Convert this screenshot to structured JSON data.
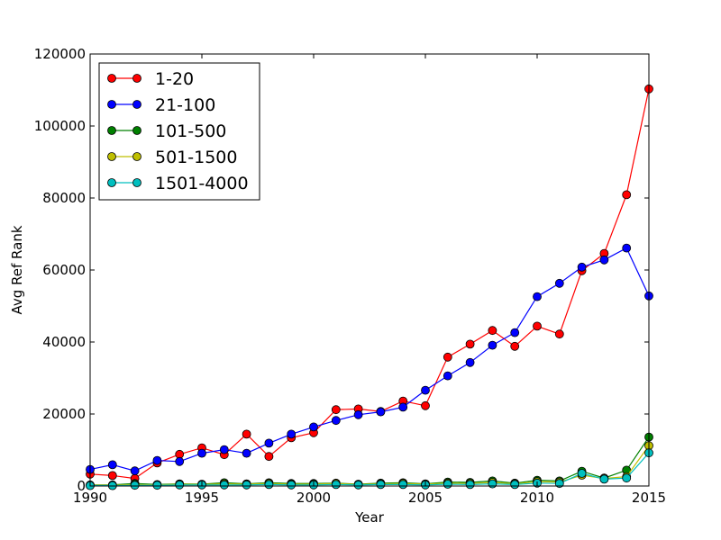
{
  "chart_data": {
    "type": "line",
    "xlabel": "Year",
    "ylabel": "Avg Ref Rank",
    "xlim": [
      1990,
      2015
    ],
    "ylim": [
      0,
      120000
    ],
    "xticks": [
      "1990",
      "1995",
      "2000",
      "2005",
      "2010",
      "2015"
    ],
    "yticks": [
      "0",
      "20000",
      "40000",
      "60000",
      "80000",
      "100000",
      "120000"
    ],
    "grid": false,
    "legend_position": "top-left",
    "x": [
      1990,
      1991,
      1992,
      1993,
      1994,
      1995,
      1996,
      1997,
      1998,
      1999,
      2000,
      2001,
      2002,
      2003,
      2004,
      2005,
      2006,
      2007,
      2008,
      2009,
      2010,
      2011,
      2012,
      2013,
      2014,
      2015
    ],
    "series": [
      {
        "name": "1-20",
        "color": "#ff0000",
        "values": [
          3300,
          2900,
          2100,
          6400,
          8800,
          10600,
          8700,
          14400,
          8200,
          13400,
          14800,
          21200,
          21400,
          20700,
          23600,
          22300,
          35800,
          39400,
          43200,
          38800,
          44400,
          42200,
          59800,
          64600,
          80900,
          110300
        ]
      },
      {
        "name": "21-100",
        "color": "#0000ff",
        "values": [
          4600,
          5900,
          4200,
          7100,
          6800,
          9100,
          10100,
          9100,
          11900,
          14400,
          16400,
          18200,
          19800,
          20600,
          21900,
          26600,
          30600,
          34300,
          39100,
          42600,
          52600,
          56300,
          60800,
          62800,
          66100,
          52800
        ]
      },
      {
        "name": "101-500",
        "color": "#008000",
        "values": [
          300,
          300,
          700,
          400,
          600,
          500,
          900,
          600,
          900,
          700,
          700,
          800,
          500,
          800,
          900,
          600,
          1100,
          1000,
          1400,
          800,
          1600,
          1400,
          4100,
          2200,
          4400,
          13600
        ]
      },
      {
        "name": "501-1500",
        "color": "#bfbf00",
        "values": [
          200,
          200,
          400,
          300,
          500,
          400,
          600,
          500,
          700,
          500,
          500,
          700,
          400,
          600,
          700,
          500,
          800,
          700,
          1000,
          600,
          1200,
          1100,
          3000,
          2100,
          2600,
          11200
        ]
      },
      {
        "name": "1501-4000",
        "color": "#00bfbf",
        "values": [
          100,
          100,
          200,
          200,
          300,
          300,
          300,
          300,
          400,
          300,
          300,
          400,
          300,
          400,
          400,
          300,
          500,
          400,
          600,
          400,
          800,
          700,
          3500,
          1900,
          2200,
          9200
        ]
      }
    ]
  }
}
